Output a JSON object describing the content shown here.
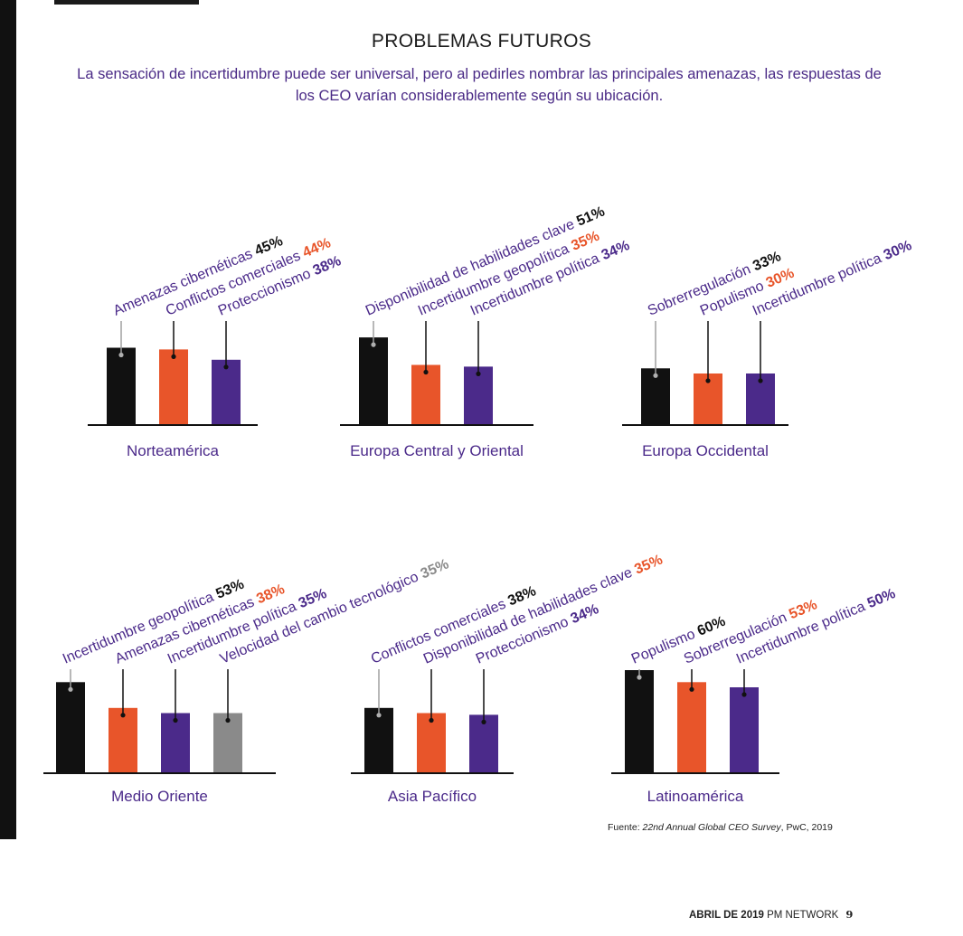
{
  "page": {
    "title": "PROBLEMAS FUTUROS",
    "subtitle": "La sensación de incertidumbre puede ser universal, pero al pedirles nombrar las principales amenazas, las respuestas de los CEO varían considerablemente según su ubicación.",
    "source_prefix": "Fuente: ",
    "source_title": "22nd Annual Global CEO Survey",
    "source_suffix": ", PwC, 2019",
    "footer_month": "ABRIL DE 2019",
    "footer_pub": "PM NETWORK",
    "footer_page": "9"
  },
  "colors": {
    "black": "#111111",
    "orange": "#e8552a",
    "purple": "#4b2a8a",
    "gray": "#8a8a8a",
    "label_text": "#4b2a8a"
  },
  "chart_data": [
    {
      "type": "bar",
      "title": "Norteamérica",
      "categories": [
        "Amenazas cibernéticas",
        "Conflictos comerciales",
        "Proteccionismo"
      ],
      "values": [
        45,
        44,
        38
      ],
      "value_labels": [
        "45%",
        "44%",
        "38%"
      ],
      "bar_colors": [
        "black",
        "orange",
        "purple"
      ],
      "ylim": [
        0,
        100
      ]
    },
    {
      "type": "bar",
      "title": "Europa Central y Oriental",
      "categories": [
        "Disponibilidad de habilidades clave",
        "Incertidumbre geopolítica",
        "Incertidumbre política"
      ],
      "values": [
        51,
        35,
        34
      ],
      "value_labels": [
        "51%",
        "35%",
        "34%"
      ],
      "bar_colors": [
        "black",
        "orange",
        "purple"
      ],
      "ylim": [
        0,
        100
      ]
    },
    {
      "type": "bar",
      "title": "Europa Occidental",
      "categories": [
        "Sobrerregulación",
        "Populismo",
        "Incertidumbre política"
      ],
      "values": [
        33,
        30,
        30
      ],
      "value_labels": [
        "33%",
        "30%",
        "30%"
      ],
      "bar_colors": [
        "black",
        "orange",
        "purple"
      ],
      "ylim": [
        0,
        100
      ]
    },
    {
      "type": "bar",
      "title": "Medio Oriente",
      "categories": [
        "Incertidumbre geopolítica",
        "Amenazas cibernéticas",
        "Incertidumbre política",
        "Velocidad del cambio tecnológico"
      ],
      "values": [
        53,
        38,
        35,
        35
      ],
      "value_labels": [
        "53%",
        "38%",
        "35%",
        "35%"
      ],
      "bar_colors": [
        "black",
        "orange",
        "purple",
        "gray"
      ],
      "ylim": [
        0,
        100
      ]
    },
    {
      "type": "bar",
      "title": "Asia Pacífico",
      "categories": [
        "Conflictos comerciales",
        "Disponibilidad de habilidades clave",
        "Proteccionismo"
      ],
      "values": [
        38,
        35,
        34
      ],
      "value_labels": [
        "38%",
        "35%",
        "34%"
      ],
      "bar_colors": [
        "black",
        "orange",
        "purple"
      ],
      "ylim": [
        0,
        100
      ]
    },
    {
      "type": "bar",
      "title": "Latinoamérica",
      "categories": [
        "Populismo",
        "Sobrerregulación",
        "Incertidumbre política"
      ],
      "values": [
        60,
        53,
        50
      ],
      "value_labels": [
        "60%",
        "53%",
        "50%"
      ],
      "bar_colors": [
        "black",
        "orange",
        "purple"
      ],
      "ylim": [
        0,
        100
      ]
    }
  ]
}
